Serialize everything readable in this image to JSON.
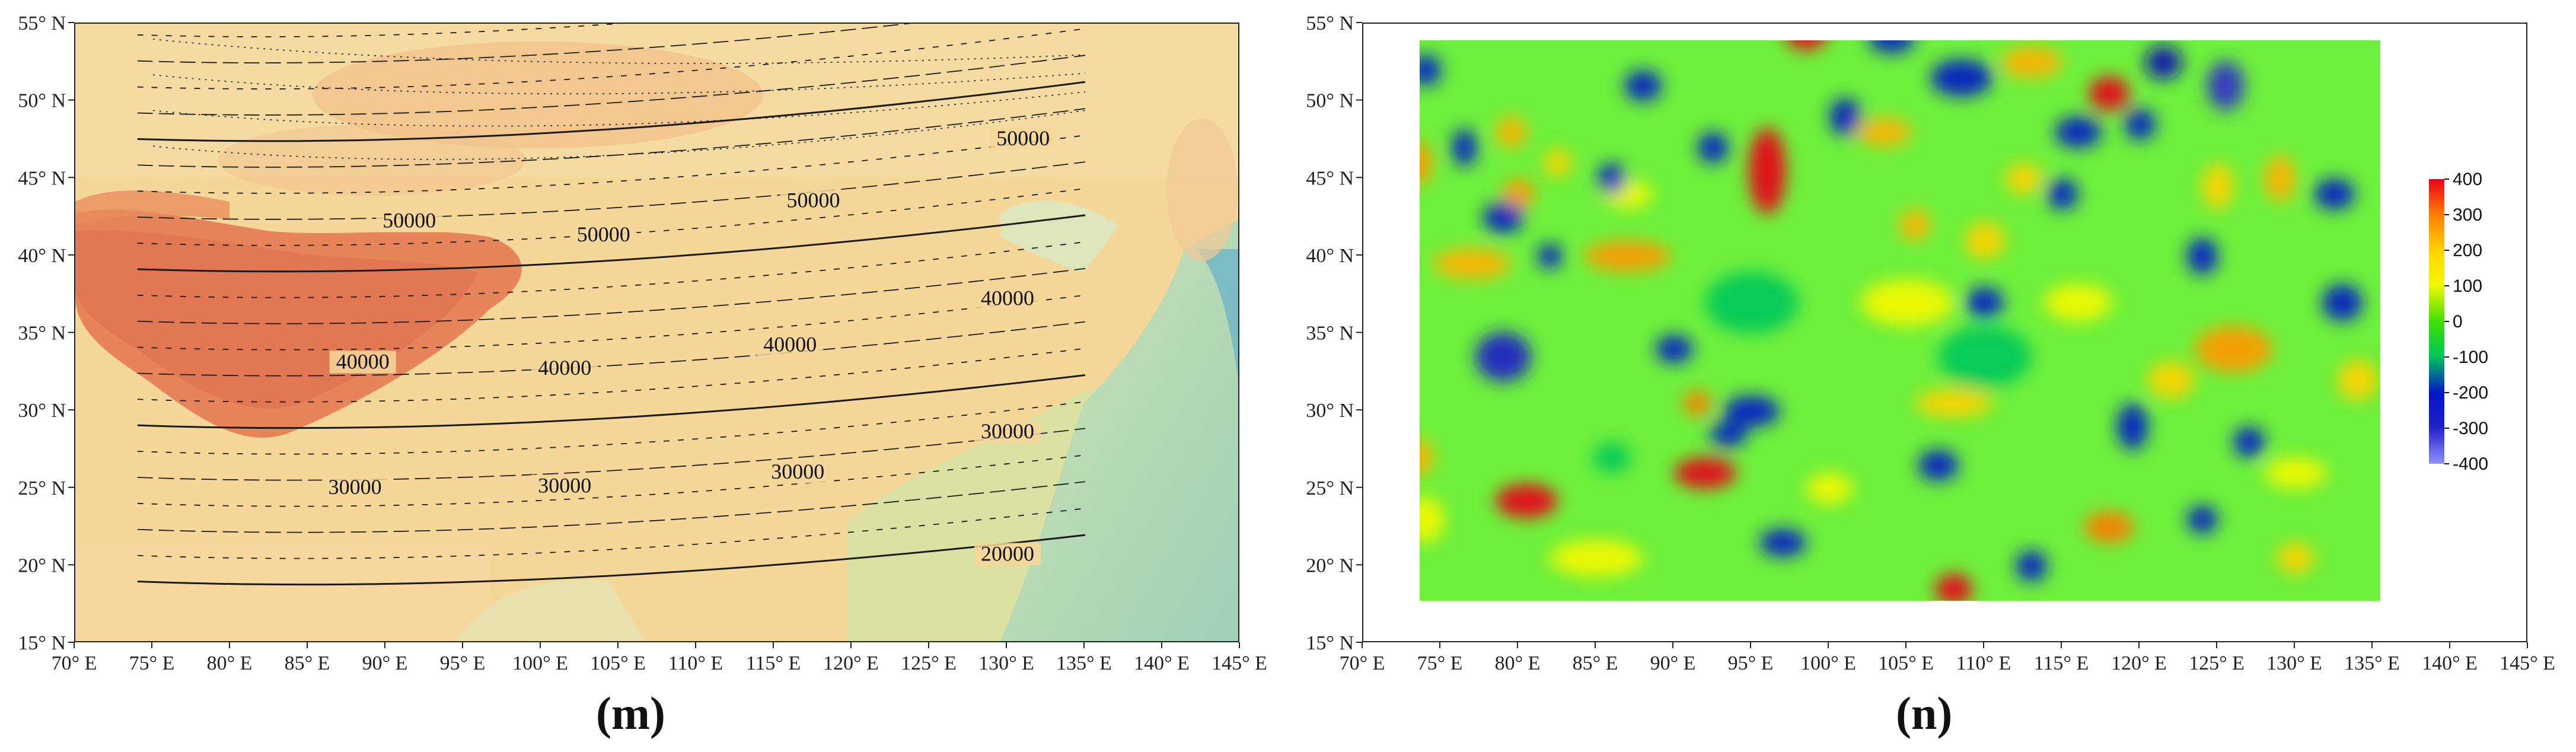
{
  "panels": [
    {
      "id": "m",
      "label": "(m)",
      "type": "contour map over terrain",
      "contour_labels": [
        {
          "text": "50000",
          "lon": 91.5,
          "lat": 42.0
        },
        {
          "text": "50000",
          "lon": 104.0,
          "lat": 41.1
        },
        {
          "text": "50000",
          "lon": 117.5,
          "lat": 43.3
        },
        {
          "text": "50000",
          "lon": 131.0,
          "lat": 47.3
        },
        {
          "text": "40000",
          "lon": 88.5,
          "lat": 32.9
        },
        {
          "text": "40000",
          "lon": 101.5,
          "lat": 32.5
        },
        {
          "text": "40000",
          "lon": 116.0,
          "lat": 34.0
        },
        {
          "text": "40000",
          "lon": 130.0,
          "lat": 37.0
        },
        {
          "text": "30000",
          "lon": 88.0,
          "lat": 24.8
        },
        {
          "text": "30000",
          "lon": 101.5,
          "lat": 24.9
        },
        {
          "text": "30000",
          "lon": 116.5,
          "lat": 25.8
        },
        {
          "text": "30000",
          "lon": 130.0,
          "lat": 28.4
        },
        {
          "text": "20000",
          "lon": 130.0,
          "lat": 20.5
        }
      ],
      "x_ticks": [
        "70° E",
        "75° E",
        "80° E",
        "85° E",
        "90° E",
        "95° E",
        "100° E",
        "105° E",
        "110° E",
        "115° E",
        "120° E",
        "125° E",
        "130° E",
        "135° E",
        "140° E",
        "145° E"
      ],
      "y_ticks": [
        "15° N",
        "20° N",
        "25° N",
        "30° N",
        "35° N",
        "40° N",
        "45° N",
        "50° N",
        "55° N"
      ]
    },
    {
      "id": "n",
      "label": "(n)",
      "type": "gridded anomaly field",
      "colorbar": {
        "ticks": [
          "400",
          "300",
          "200",
          "100",
          "0",
          "-100",
          "-200",
          "-300",
          "-400"
        ],
        "colors": [
          "#e8001a",
          "#ff7a00",
          "#ffd200",
          "#f4f800",
          "#3fe000",
          "#00c85a",
          "#0016c8",
          "#2020c8",
          "#9090ff"
        ]
      },
      "x_ticks": [
        "70° E",
        "75° E",
        "80° E",
        "85° E",
        "90° E",
        "95° E",
        "100° E",
        "105° E",
        "110° E",
        "115° E",
        "120° E",
        "125° E",
        "130° E",
        "135° E",
        "140° E",
        "145° E"
      ],
      "y_ticks": [
        "15° N",
        "20° N",
        "25° N",
        "30° N",
        "35° N",
        "40° N",
        "45° N",
        "50° N",
        "55° N"
      ]
    }
  ]
}
